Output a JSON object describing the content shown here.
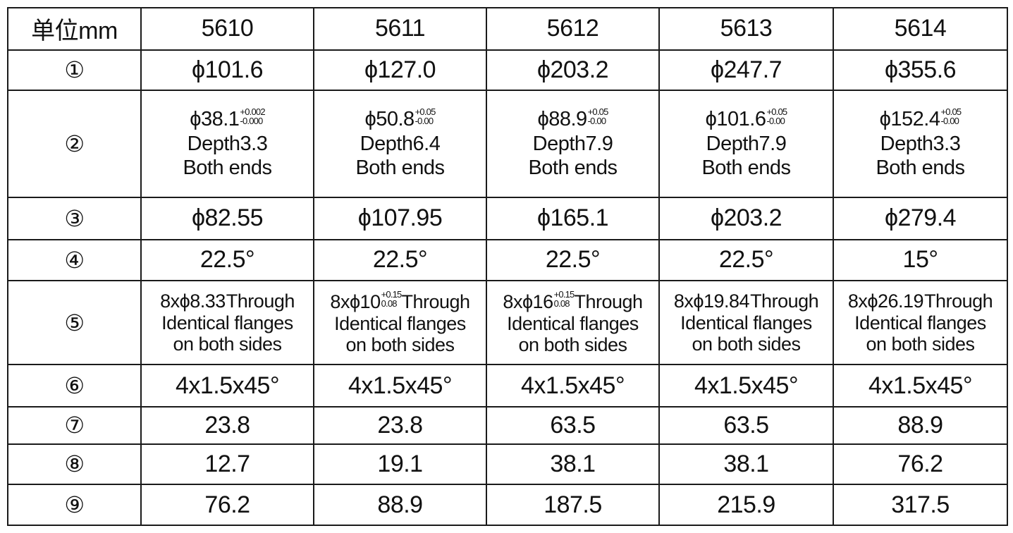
{
  "header": {
    "unit_label": "单位mm",
    "models": [
      "5610",
      "5611",
      "5612",
      "5613",
      "5614"
    ]
  },
  "rows": [
    {
      "index": "①",
      "cells": [
        "ϕ101.6",
        "ϕ127.0",
        "ϕ203.2",
        "ϕ247.7",
        "ϕ355.6"
      ]
    },
    {
      "index": "②",
      "cells": [
        {
          "base": "ϕ38.1",
          "tol_plus": "+0.002",
          "tol_minus": "-0.000",
          "depth": "Depth3.3",
          "ends": "Both ends"
        },
        {
          "base": "ϕ50.8",
          "tol_plus": "+0.05",
          "tol_minus": "-0.00",
          "depth": "Depth6.4",
          "ends": "Both ends"
        },
        {
          "base": "ϕ88.9",
          "tol_plus": "+0.05",
          "tol_minus": "-0.00",
          "depth": "Depth7.9",
          "ends": "Both ends"
        },
        {
          "base": "ϕ101.6",
          "tol_plus": "+0.05",
          "tol_minus": "-0.00",
          "depth": "Depth7.9",
          "ends": "Both ends"
        },
        {
          "base": "ϕ152.4",
          "tol_plus": "+0.05",
          "tol_minus": "-0.00",
          "depth": "Depth3.3",
          "ends": "Both ends"
        }
      ]
    },
    {
      "index": "③",
      "cells": [
        "ϕ82.55",
        "ϕ107.95",
        "ϕ165.1",
        "ϕ203.2",
        "ϕ279.4"
      ]
    },
    {
      "index": "④",
      "cells": [
        "22.5°",
        "22.5°",
        "22.5°",
        "22.5°",
        "15°"
      ]
    },
    {
      "index": "⑤",
      "cells": [
        {
          "pre": "8xϕ8.33",
          "tol_plus": "",
          "tol_minus": "",
          "post": "Through",
          "l2": "Identical flanges",
          "l3": "on both sides"
        },
        {
          "pre": "8xϕ10",
          "tol_plus": "+0.15",
          "tol_minus": "0.08",
          "post": "Through",
          "l2": "Identical flanges",
          "l3": "on both sides"
        },
        {
          "pre": "8xϕ16",
          "tol_plus": "+0.15",
          "tol_minus": "0.08",
          "post": "Through",
          "l2": "Identical flanges",
          "l3": "on both sides"
        },
        {
          "pre": "8xϕ19.84",
          "tol_plus": "",
          "tol_minus": "",
          "post": "Through",
          "l2": "Identical flanges",
          "l3": "on both sides"
        },
        {
          "pre": "8xϕ26.19",
          "tol_plus": "",
          "tol_minus": "",
          "post": "Through",
          "l2": "Identical flanges",
          "l3": "on both sides"
        }
      ]
    },
    {
      "index": "⑥",
      "cells": [
        "4x1.5x45°",
        "4x1.5x45°",
        "4x1.5x45°",
        "4x1.5x45°",
        "4x1.5x45°"
      ]
    },
    {
      "index": "⑦",
      "cells": [
        "23.8",
        "23.8",
        "63.5",
        "63.5",
        "88.9"
      ]
    },
    {
      "index": "⑧",
      "cells": [
        "12.7",
        "19.1",
        "38.1",
        "38.1",
        "76.2"
      ]
    },
    {
      "index": "⑨",
      "cells": [
        "76.2",
        "88.9",
        "187.5",
        "215.9",
        "317.5"
      ]
    }
  ]
}
